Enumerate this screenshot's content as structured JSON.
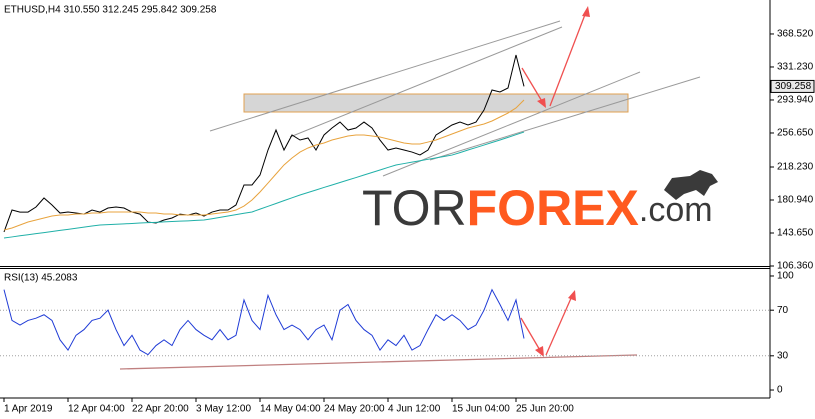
{
  "chart_data": [
    {
      "type": "line",
      "title": "ETHUSD,H4  310.550 312.245 295.842 309.258",
      "categories": [
        "1 Apr 2019",
        null,
        null,
        null,
        null,
        null,
        null,
        null,
        "12 Apr 04:00",
        null,
        null,
        null,
        null,
        null,
        null,
        null,
        "22 Apr 20:00",
        null,
        null,
        null,
        null,
        null,
        null,
        null,
        "3 May 12:00",
        null,
        null,
        null,
        null,
        null,
        null,
        null,
        "14 May 04:00",
        null,
        null,
        null,
        null,
        null,
        null,
        null,
        "24 May 20:00",
        null,
        null,
        null,
        null,
        null,
        null,
        null,
        "4 Jun 12:00",
        null,
        null,
        null,
        null,
        null,
        null,
        null,
        "15 Jun 04:00",
        null,
        null,
        null,
        null,
        null,
        null,
        null,
        "25 Jun 20:00",
        null
      ],
      "series": [
        {
          "color": "#000000",
          "values": [
            144.8,
            169.6,
            167.3,
            167.3,
            173,
            183.2,
            175.3,
            166.2,
            167.3,
            166.2,
            165,
            169.6,
            167.3,
            171.9,
            173,
            171.9,
            167.3,
            165,
            156,
            154.9,
            158.3,
            160.6,
            165,
            163.9,
            166.2,
            162.8,
            167.3,
            169.6,
            169.6,
            175.3,
            197.9,
            197.9,
            209.2,
            237.4,
            260,
            237.4,
            254.4,
            248.7,
            251,
            237.4,
            254.4,
            262.3,
            269,
            260,
            262.3,
            269,
            262.3,
            248.7,
            237.4,
            239.7,
            237.4,
            235.1,
            231.8,
            237.4,
            254.4,
            260,
            265.7,
            269,
            265.7,
            269,
            282.6,
            305.2,
            303,
            307.5,
            344.8,
            309.3
          ]
        },
        {
          "color": "#e8a33d",
          "values": [
            147.0,
            149.3,
            152.7,
            156.1,
            158.3,
            160.6,
            162.8,
            164.0,
            164.0,
            165.1,
            165.1,
            166.2,
            166.2,
            167.4,
            167.4,
            167.4,
            167.4,
            167.4,
            166.2,
            166.2,
            165.1,
            165.1,
            164.0,
            164.0,
            164.0,
            164.0,
            165.1,
            166.2,
            167.4,
            169.6,
            174.1,
            180.9,
            190.0,
            200.1,
            210.3,
            220.5,
            228.4,
            235.1,
            239.7,
            243.1,
            245.3,
            248.7,
            251.0,
            253.2,
            254.4,
            254.4,
            253.2,
            252.1,
            249.8,
            247.6,
            245.3,
            244.2,
            244.2,
            246.4,
            248.7,
            252.1,
            255.5,
            258.9,
            262.3,
            264.5,
            266.8,
            270.2,
            274.7,
            279.2,
            284.9,
            293.9
          ]
        },
        {
          "color": "#20b0a8",
          "values": [
            138.0,
            139.2,
            140.5,
            141.7,
            142.9,
            144.1,
            145.4,
            146.6,
            147.8,
            149.0,
            150.3,
            151.5,
            152.7,
            153.1,
            153.6,
            154.0,
            154.4,
            154.9,
            155.3,
            155.7,
            156.2,
            156.6,
            157.0,
            157.4,
            157.9,
            158.3,
            159.8,
            161.3,
            162.9,
            164.4,
            165.9,
            167.4,
            170.6,
            173.8,
            177.0,
            180.2,
            183.4,
            186.6,
            189.4,
            192.2,
            195.1,
            197.9,
            200.7,
            203.5,
            206.3,
            209.2,
            212.0,
            214.8,
            217.7,
            220.5,
            222.1,
            223.7,
            225.3,
            226.9,
            228.5,
            230.1,
            231.7,
            234.5,
            237.4,
            240.2,
            243.0,
            245.9,
            248.7,
            251.7,
            254.7,
            257.7
          ]
        }
      ],
      "ylim": [
        106.36,
        406.9
      ],
      "yticks": [
        {
          "value": 106.36,
          "label": "106.360"
        },
        {
          "value": 143.65,
          "label": "143.650"
        },
        {
          "value": 180.94,
          "label": "180.940"
        },
        {
          "value": 218.23,
          "label": "218.230"
        },
        {
          "value": 256.65,
          "label": "256.650"
        },
        {
          "value": 293.94,
          "label": "293.940"
        },
        {
          "value": 331.23,
          "label": "331.230"
        },
        {
          "value": 368.52,
          "label": "368.520"
        }
      ],
      "current": {
        "value": 309.258,
        "label": "309.258"
      },
      "watermark": {
        "prefix": "TOR",
        "brand": "FOREX",
        "suffix": ".com"
      }
    },
    {
      "type": "line",
      "title": "RSI(13) 45.2083",
      "series": [
        {
          "color": "#1f3bd6",
          "values": [
            88,
            61,
            57,
            61,
            63,
            66,
            61,
            44,
            35,
            48,
            53,
            61,
            63,
            70,
            53,
            39,
            48,
            35,
            31,
            39,
            44,
            39,
            53,
            61,
            53,
            48,
            44,
            53,
            44,
            48,
            79,
            61,
            53,
            83,
            66,
            53,
            57,
            53,
            44,
            53,
            57,
            44,
            70,
            75,
            61,
            53,
            48,
            35,
            44,
            39,
            48,
            35,
            39,
            53,
            66,
            61,
            66,
            61,
            53,
            57,
            70,
            88,
            75,
            61,
            79,
            45.2
          ]
        }
      ],
      "ylim": [
        -7,
        107
      ],
      "yticks": [
        0,
        30,
        70,
        100
      ],
      "levels": [
        30,
        70
      ]
    }
  ]
}
